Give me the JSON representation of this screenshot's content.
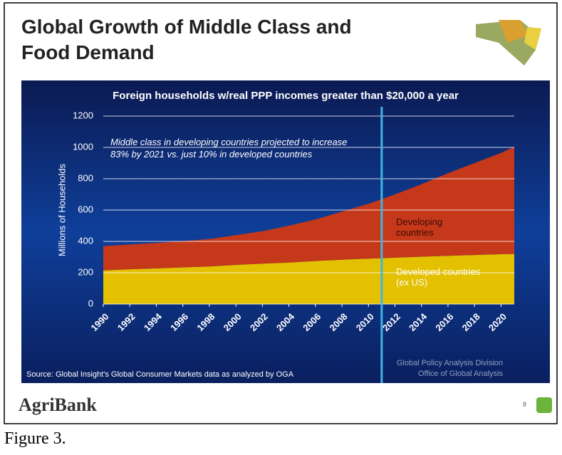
{
  "slide": {
    "title": "Global Growth of Middle Class and Food Demand",
    "brand": "AgriBank",
    "page_number": "8"
  },
  "caption": "Figure 3.",
  "chart_data": {
    "type": "stacked-area",
    "title": "Foreign households w/real PPP incomes greater than $20,000 a year",
    "y_label": "Millions of Households",
    "annotation": "Middle class in developing countries projected to increase 83% by 2021 vs. just 10% in developed countries",
    "source": "Source: Global Insight's Global Consumer Markets data as analyzed by OGA",
    "credit": [
      "Global Policy Analysis Division",
      "Office of Global Analysis"
    ],
    "x": [
      1990,
      1992,
      1994,
      1996,
      1998,
      2000,
      2002,
      2004,
      2006,
      2008,
      2010,
      2012,
      2014,
      2016,
      2018,
      2020,
      2021
    ],
    "series": [
      {
        "name": "Developed countries (ex US)",
        "color": "#e3c000",
        "values": [
          215,
          222,
          228,
          234,
          240,
          250,
          258,
          265,
          275,
          283,
          290,
          296,
          302,
          308,
          313,
          318,
          320
        ]
      },
      {
        "name": "Developing countries",
        "color": "#c5381a",
        "values": [
          155,
          158,
          162,
          168,
          175,
          190,
          207,
          235,
          265,
          307,
          350,
          404,
          463,
          527,
          587,
          647,
          685
        ]
      }
    ],
    "xlim": [
      1990,
      2021
    ],
    "xticks": [
      1990,
      1992,
      1994,
      1996,
      1998,
      2000,
      2002,
      2004,
      2006,
      2008,
      2010,
      2012,
      2014,
      2016,
      2018,
      2020
    ],
    "ylim": [
      0,
      1200
    ],
    "yticks": [
      0,
      200,
      400,
      600,
      800,
      1000,
      1200
    ],
    "grid": true,
    "vline": 2011,
    "vline_color": "#3fb6e6"
  }
}
